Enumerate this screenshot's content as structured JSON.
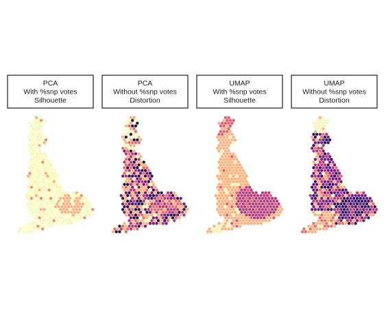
{
  "chart_data": {
    "type": "heatmap",
    "geometry": "hexagonal tile map of local authority areas (Great Britain outline)",
    "grid": false,
    "legend": "none",
    "axes": "hidden",
    "panels": [
      {
        "title_lines": [
          "PCA",
          "With %snp votes",
          "Silhouette"
        ],
        "method": "PCA",
        "variant": "With %snp votes",
        "metric": "Silhouette",
        "palette": [
          "#fcfdbf",
          "#f4f6b8",
          "#fdae7a",
          "#f48a6a"
        ],
        "dominant_color": "#f4f6b8",
        "notes": "mostly pale yellow; an orange cluster in the south-east (London area) and scattered orange hexes"
      },
      {
        "title_lines": [
          "PCA",
          "Without %snp votes",
          "Distortion"
        ],
        "method": "PCA",
        "variant": "Without %snp votes",
        "metric": "Distortion",
        "palette": [
          "#fcfdbf",
          "#fdb07a",
          "#e9686a",
          "#b5367a",
          "#6a1c81",
          "#1d1147"
        ],
        "dominant_color": "#fdb07a",
        "notes": "mix of orange, magenta and dark navy; magenta core in the south-east"
      },
      {
        "title_lines": [
          "UMAP",
          "With %snp votes",
          "Silhouette"
        ],
        "method": "UMAP",
        "variant": "With %snp votes",
        "metric": "Silhouette",
        "palette": [
          "#f4f6b8",
          "#fdb07a",
          "#e9566a",
          "#b5367a"
        ],
        "dominant_color": "#fdb07a",
        "notes": "orange overall; red hexes in northern Scotland; large magenta block in the south-east"
      },
      {
        "title_lines": [
          "UMAP",
          "Without %snp votes",
          "Distortion"
        ],
        "method": "UMAP",
        "variant": "Without %snp votes",
        "metric": "Distortion",
        "palette": [
          "#f4f6b8",
          "#fdb07a",
          "#e9686a",
          "#b5367a",
          "#6a1c81",
          "#2a1260"
        ],
        "dominant_color": "#6a1c81",
        "notes": "dominated by dark purple and magenta; pale yellow in northern Scotland; orange in the south-west"
      }
    ]
  }
}
